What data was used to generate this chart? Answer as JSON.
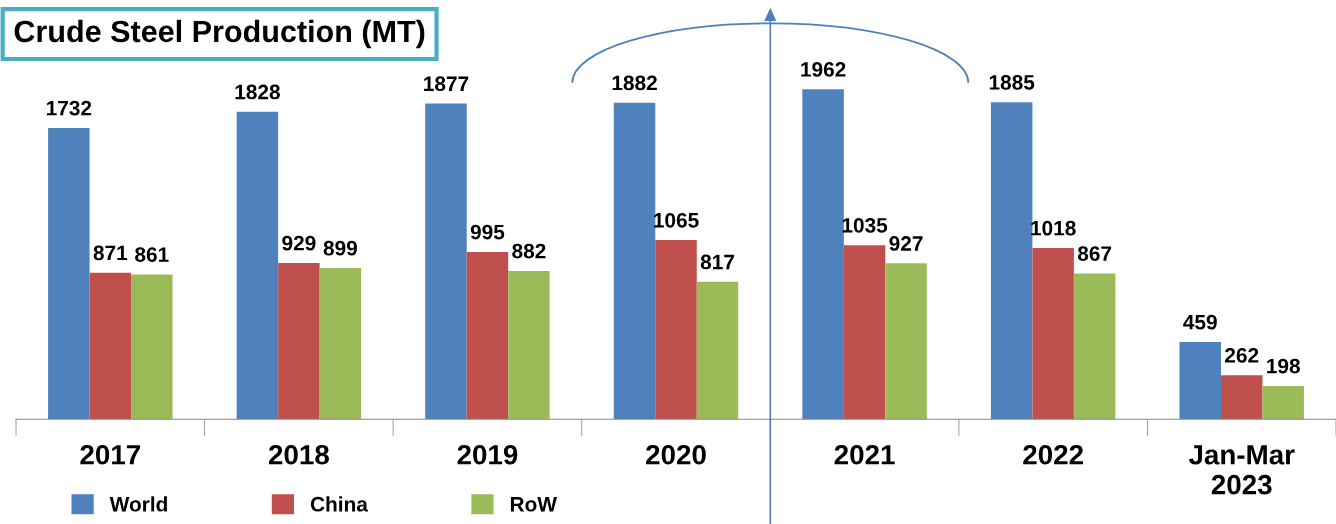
{
  "chart_data": {
    "type": "bar",
    "title": "Crude Steel Production (MT)",
    "categories": [
      "2017",
      "2018",
      "2019",
      "2020",
      "2021",
      "2022",
      "Jan-Mar\n2023"
    ],
    "series": [
      {
        "name": "World",
        "color": "#4f81bd",
        "values": [
          1732,
          1828,
          1877,
          1882,
          1962,
          1885,
          459
        ]
      },
      {
        "name": "China",
        "color": "#c0504d",
        "values": [
          871,
          929,
          995,
          1065,
          1035,
          1018,
          262
        ]
      },
      {
        "name": "RoW",
        "color": "#9bbb59",
        "values": [
          861,
          899,
          882,
          817,
          927,
          867,
          198
        ]
      }
    ],
    "data_labels": true,
    "legend": "bottom left",
    "grid": false
  }
}
